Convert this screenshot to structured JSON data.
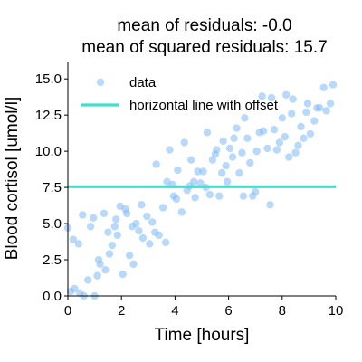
{
  "colors": {
    "points": "#7fbaf5",
    "line": "#40e0d0",
    "axis": "#000000"
  },
  "chart_data": {
    "type": "scatter",
    "title_lines": [
      "mean of residuals: -0.0",
      "mean of squared residuals: 15.7"
    ],
    "xlabel": "Time [hours]",
    "ylabel": "Blood cortisol [umol/l]",
    "xlim": [
      0,
      10
    ],
    "ylim": [
      0,
      16.2
    ],
    "xticks": [
      0,
      2,
      4,
      6,
      8,
      10
    ],
    "xtick_labels": [
      "0",
      "2",
      "4",
      "6",
      "8",
      "10"
    ],
    "yticks": [
      0,
      2.5,
      5,
      7.5,
      10,
      12.5,
      15
    ],
    "ytick_labels": [
      "0.0",
      "2.5",
      "5.0",
      "7.5",
      "10.0",
      "12.5",
      "15.0"
    ],
    "grid": false,
    "legend_position": "upper-left",
    "legend": [
      {
        "label": "data",
        "kind": "marker"
      },
      {
        "label": "horizontal line with offset",
        "kind": "line"
      }
    ],
    "horizontal_line": {
      "y": 7.55,
      "label": "horizontal line with offset"
    },
    "series": [
      {
        "label": "data",
        "x": [
          0.0,
          0.1,
          0.2,
          0.25,
          0.4,
          0.45,
          0.55,
          0.6,
          0.75,
          0.85,
          0.95,
          1.0,
          1.1,
          1.15,
          1.2,
          1.35,
          1.4,
          1.5,
          1.55,
          1.65,
          1.75,
          1.8,
          1.85,
          1.95,
          2.05,
          2.15,
          2.2,
          2.3,
          2.4,
          2.45,
          2.55,
          2.65,
          2.75,
          2.8,
          2.95,
          3.05,
          3.15,
          3.25,
          3.3,
          3.4,
          3.55,
          3.65,
          3.7,
          3.8,
          3.9,
          3.95,
          4.05,
          4.1,
          4.25,
          4.35,
          4.45,
          4.55,
          4.6,
          4.7,
          4.75,
          4.85,
          4.95,
          5.05,
          5.15,
          5.2,
          5.3,
          5.4,
          5.5,
          5.55,
          5.65,
          5.75,
          5.8,
          5.9,
          5.95,
          6.05,
          6.15,
          6.2,
          6.3,
          6.4,
          6.5,
          6.55,
          6.6,
          6.7,
          6.8,
          6.9,
          7.0,
          7.05,
          7.15,
          7.25,
          7.3,
          7.45,
          7.55,
          7.6,
          7.7,
          7.8,
          7.9,
          8.0,
          8.1,
          8.15,
          8.25,
          8.35,
          8.4,
          8.5,
          8.6,
          8.7,
          8.8,
          8.9,
          8.95,
          9.05,
          9.2,
          9.3,
          9.4,
          9.55,
          9.65,
          9.8,
          9.9
        ],
        "y": [
          4.7,
          0.3,
          3.9,
          0.5,
          3.6,
          0.2,
          5.6,
          0.0,
          1.1,
          4.8,
          5.4,
          0.0,
          1.4,
          2.5,
          2.2,
          5.7,
          1.8,
          4.4,
          2.9,
          3.5,
          4.8,
          5.3,
          4.2,
          6.2,
          1.5,
          6.0,
          5.7,
          2.8,
          4.8,
          2.2,
          5.0,
          4.5,
          6.3,
          4.0,
          5.5,
          3.6,
          5.1,
          4.4,
          9.1,
          4.2,
          6.1,
          3.7,
          7.9,
          10.1,
          7.7,
          6.9,
          6.7,
          8.7,
          5.8,
          10.6,
          7.3,
          7.6,
          9.4,
          7.9,
          6.8,
          8.6,
          7.8,
          8.6,
          7.5,
          11.3,
          7.0,
          9.4,
          9.8,
          10.1,
          6.9,
          8.5,
          10.7,
          9.0,
          7.9,
          10.2,
          9.6,
          10.9,
          11.6,
          8.5,
          9.9,
          6.9,
          12.3,
          10.9,
          9.2,
          6.9,
          7.2,
          10.0,
          11.3,
          13.8,
          11.4,
          10.2,
          6.3,
          13.7,
          11.5,
          10.1,
          10.6,
          12.3,
          11.0,
          13.9,
          9.6,
          12.6,
          13.6,
          9.9,
          10.4,
          11.7,
          10.9,
          12.7,
          13.3,
          11.2,
          12.1,
          13.0,
          13.0,
          14.4,
          12.8,
          13.3,
          14.6
        ]
      }
    ]
  }
}
